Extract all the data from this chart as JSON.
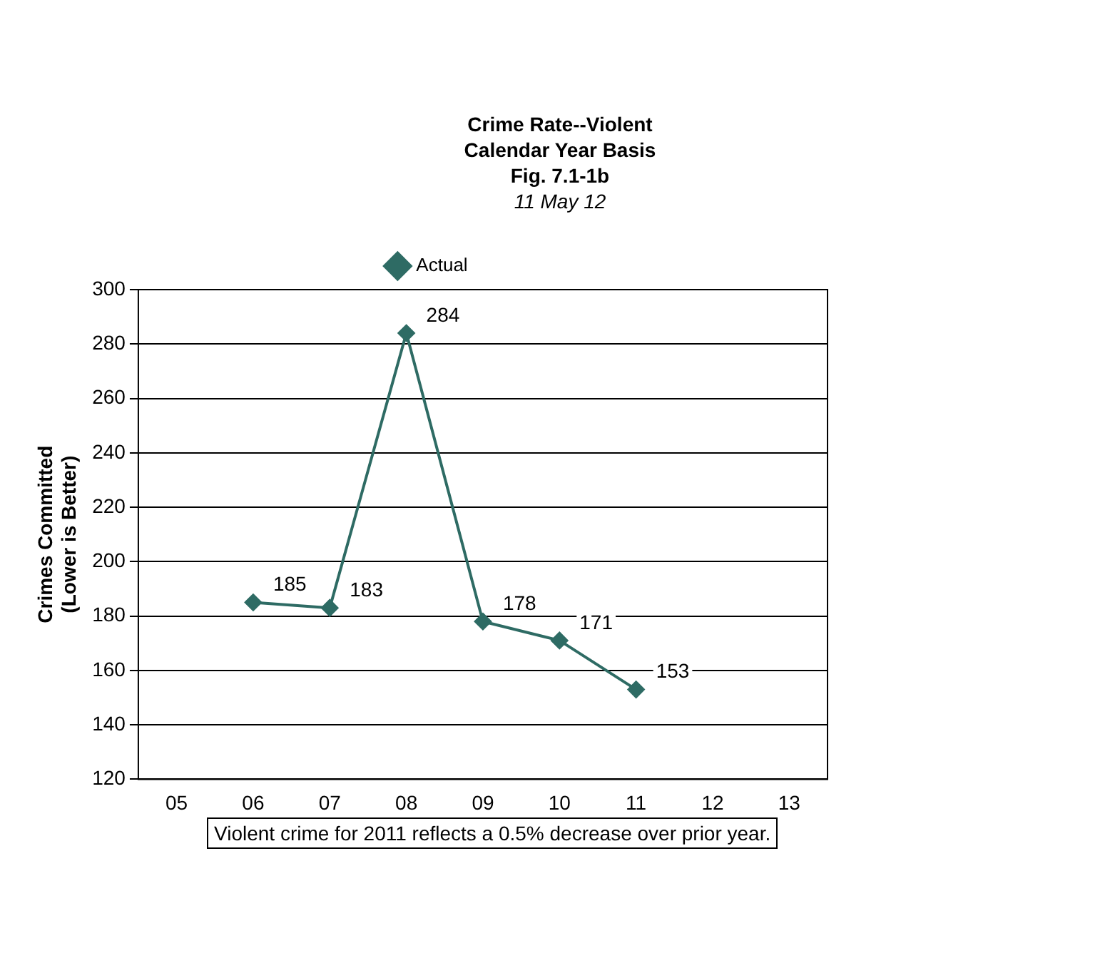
{
  "chart_data": {
    "type": "line",
    "title": "Crime Rate--Violent",
    "subtitle": "Calendar Year Basis",
    "annotations": [
      "Fig. 7.1-1b",
      "11 May 12",
      "Violent crime for 2011 reflects a 0.5% decrease over prior year."
    ],
    "ylabel": "Crimes Committed\n(Lower is Better)",
    "categories": [
      "05",
      "06",
      "07",
      "08",
      "09",
      "10",
      "11",
      "12",
      "13"
    ],
    "series": [
      {
        "name": "Actual",
        "color": "#2e6b64",
        "values": [
          null,
          185,
          183,
          284,
          178,
          171,
          153,
          null,
          null
        ]
      }
    ],
    "ylim": [
      120,
      300
    ],
    "yticks": [
      120,
      140,
      160,
      180,
      200,
      220,
      240,
      260,
      280,
      300
    ],
    "grid": "y",
    "legend": "top",
    "marker": "diamond",
    "line_style": "solid",
    "data_labels": true
  }
}
